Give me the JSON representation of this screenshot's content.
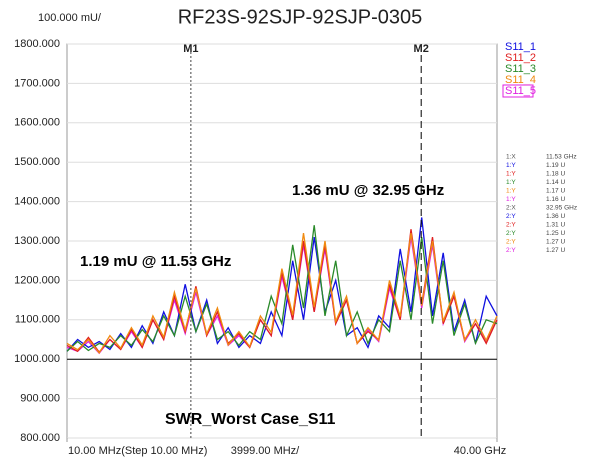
{
  "chart_data": {
    "type": "line",
    "title": "RF23S-92SJP-92SJP-0305",
    "y_scale_label": "100.000 mU/",
    "x_scale_label": "3999.00 MHz/",
    "annotations": [
      "1.19 mU @ 11.53 GHz",
      "1.36 mU @ 32.95 GHz",
      "SWR_Worst Case_S11"
    ],
    "xlim": [
      0.01,
      40
    ],
    "xticks": [
      {
        "value": 0.01,
        "label": "10.00 MHz(Step 10.00 MHz)"
      },
      {
        "value": 40,
        "label": "40.00 GHz"
      }
    ],
    "ylim": [
      800,
      1800
    ],
    "yticks": [
      {
        "value": 800,
        "label": "800.000"
      },
      {
        "value": 900,
        "label": "900.000"
      },
      {
        "value": 1000,
        "label": "1000.000"
      },
      {
        "value": 1100,
        "label": "1100.000"
      },
      {
        "value": 1200,
        "label": "1200.000"
      },
      {
        "value": 1300,
        "label": "1300.000"
      },
      {
        "value": 1400,
        "label": "1400.000"
      },
      {
        "value": 1500,
        "label": "1500.000"
      },
      {
        "value": 1600,
        "label": "1600.000"
      },
      {
        "value": 1700,
        "label": "1700.000"
      },
      {
        "value": 1800,
        "label": "1800.000"
      }
    ],
    "grid": true,
    "reference_value": 1000,
    "legend": "right",
    "x": [
      0.01,
      1,
      2,
      3,
      4,
      5,
      6,
      7,
      8,
      9,
      10,
      11,
      12,
      13,
      14,
      15,
      16,
      17,
      18,
      19,
      20,
      21,
      22,
      23,
      24,
      25,
      26,
      27,
      28,
      29,
      30,
      31,
      32,
      33,
      34,
      35,
      36,
      37,
      38,
      39,
      40
    ],
    "series": [
      {
        "name": "S11_1",
        "color": "#1010e0",
        "values": [
          1020,
          1050,
          1030,
          1045,
          1025,
          1065,
          1030,
          1085,
          1040,
          1120,
          1060,
          1190,
          1070,
          1150,
          1040,
          1080,
          1030,
          1060,
          1040,
          1120,
          1060,
          1250,
          1100,
          1310,
          1120,
          1200,
          1060,
          1080,
          1030,
          1110,
          1080,
          1280,
          1120,
          1360,
          1110,
          1270,
          1070,
          1150,
          1040,
          1160,
          1110
        ]
      },
      {
        "name": "S11_2",
        "color": "#e02020",
        "values": [
          1035,
          1020,
          1055,
          1018,
          1050,
          1025,
          1075,
          1030,
          1100,
          1050,
          1160,
          1070,
          1185,
          1060,
          1120,
          1040,
          1065,
          1030,
          1100,
          1060,
          1220,
          1100,
          1300,
          1120,
          1290,
          1090,
          1150,
          1040,
          1070,
          1050,
          1190,
          1100,
          1330,
          1140,
          1310,
          1090,
          1160,
          1050,
          1090,
          1040,
          1100
        ]
      },
      {
        "name": "S11_3",
        "color": "#2a8a2a",
        "values": [
          1020,
          1045,
          1022,
          1040,
          1030,
          1060,
          1035,
          1075,
          1045,
          1110,
          1060,
          1160,
          1070,
          1140,
          1050,
          1070,
          1035,
          1070,
          1050,
          1160,
          1090,
          1290,
          1130,
          1340,
          1110,
          1250,
          1060,
          1120,
          1040,
          1100,
          1070,
          1250,
          1100,
          1310,
          1090,
          1250,
          1060,
          1140,
          1040,
          1100,
          1090
        ]
      },
      {
        "name": "S11_4",
        "color": "#f08a10",
        "values": [
          1040,
          1024,
          1050,
          1016,
          1060,
          1028,
          1080,
          1036,
          1110,
          1056,
          1170,
          1074,
          1180,
          1064,
          1130,
          1036,
          1070,
          1032,
          1110,
          1068,
          1230,
          1112,
          1320,
          1132,
          1300,
          1096,
          1160,
          1040,
          1080,
          1048,
          1200,
          1108,
          1320,
          1136,
          1300,
          1096,
          1170,
          1048,
          1100,
          1048,
          1110
        ]
      },
      {
        "name": "S11_5",
        "color": "#e020e0",
        "values": [
          1030,
          1020,
          1045,
          1015,
          1050,
          1025,
          1070,
          1030,
          1100,
          1050,
          1150,
          1065,
          1170,
          1060,
          1110,
          1035,
          1060,
          1030,
          1100,
          1060,
          1210,
          1100,
          1290,
          1120,
          1280,
          1090,
          1150,
          1040,
          1075,
          1045,
          1180,
          1100,
          1310,
          1130,
          1290,
          1090,
          1160,
          1045,
          1090,
          1045,
          1100
        ]
      }
    ],
    "markers": [
      {
        "label": "M1",
        "x": 11.53
      },
      {
        "label": "M2",
        "x": 32.95
      }
    ],
    "marker_table": [
      {
        "label": "1:X",
        "value": "11.53 GHz",
        "color": "#555555"
      },
      {
        "label": "1:Y",
        "value": "1.19 U",
        "color": "#1010e0"
      },
      {
        "label": "1:Y",
        "value": "1.18 U",
        "color": "#e02020"
      },
      {
        "label": "1:Y",
        "value": "1.14 U",
        "color": "#2a8a2a"
      },
      {
        "label": "1:Y",
        "value": "1.17 U",
        "color": "#f08a10"
      },
      {
        "label": "1:Y",
        "value": "1.16 U",
        "color": "#e020e0"
      },
      {
        "label": "2:X",
        "value": "32.95 GHz",
        "color": "#555555"
      },
      {
        "label": "2:Y",
        "value": "1.36 U",
        "color": "#1010e0"
      },
      {
        "label": "2:Y",
        "value": "1.31 U",
        "color": "#e02020"
      },
      {
        "label": "2:Y",
        "value": "1.25 U",
        "color": "#2a8a2a"
      },
      {
        "label": "2:Y",
        "value": "1.27 U",
        "color": "#f08a10"
      },
      {
        "label": "2:Y",
        "value": "1.27 U",
        "color": "#e020e0"
      }
    ]
  }
}
